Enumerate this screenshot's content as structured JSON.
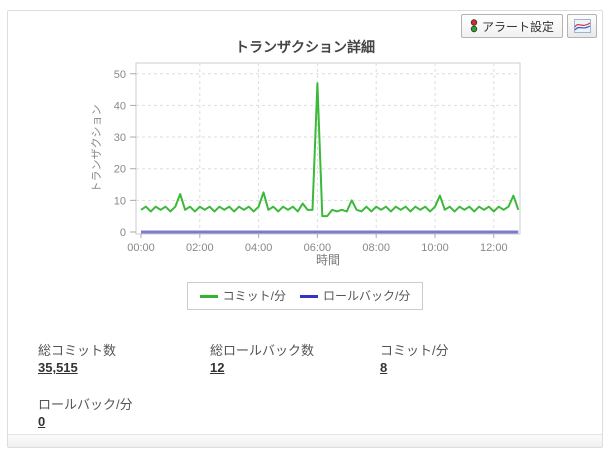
{
  "header": {
    "alert_button_label": "アラート設定"
  },
  "chart_data": {
    "type": "line",
    "title": "トランザクション詳細",
    "xlabel": "時間",
    "ylabel": "トランザクション",
    "ylim": [
      0,
      53.4
    ],
    "y_ticks": [
      0,
      10,
      20,
      30,
      40,
      50
    ],
    "x_ticks": [
      {
        "minute": 0,
        "label": "00:00"
      },
      {
        "minute": 120,
        "label": "02:00"
      },
      {
        "minute": 240,
        "label": "04:00"
      },
      {
        "minute": 360,
        "label": "06:00"
      },
      {
        "minute": 480,
        "label": "08:00"
      },
      {
        "minute": 600,
        "label": "10:00"
      },
      {
        "minute": 720,
        "label": "12:00"
      }
    ],
    "x_step_min": 10,
    "grid": "dashed",
    "legend_position": "bottom",
    "series": [
      {
        "name": "コミット/分",
        "color": "#33b333",
        "line_color": "#3ab93a",
        "stroke_width": 2,
        "values": [
          7,
          8,
          6.5,
          8,
          7,
          8,
          6.5,
          8,
          12,
          7,
          8,
          6.5,
          8,
          7,
          8,
          6.5,
          8,
          7,
          8,
          6.5,
          8,
          7,
          8,
          6.5,
          8,
          12.5,
          7,
          8,
          6.5,
          8,
          7,
          8,
          6.5,
          9,
          7,
          7,
          47,
          5,
          5,
          7,
          6.5,
          7,
          6.5,
          10,
          7,
          6.5,
          8,
          6.5,
          8,
          7,
          8,
          6.5,
          8,
          7,
          8,
          6.5,
          8,
          7,
          8,
          6.5,
          8,
          11.5,
          7,
          8,
          6.5,
          8,
          7,
          8,
          6.5,
          8,
          7,
          8,
          6.5,
          8,
          7,
          8,
          11.5,
          7
        ]
      },
      {
        "name": "ロールバック/分",
        "color": "#3333cc",
        "line_color": "#7b7bd0",
        "stroke_width": 3,
        "values": [
          0,
          0,
          0,
          0,
          0,
          0,
          0,
          0,
          0,
          0,
          0,
          0,
          0,
          0,
          0,
          0,
          0,
          0,
          0,
          0,
          0,
          0,
          0,
          0,
          0,
          0,
          0,
          0,
          0,
          0,
          0,
          0,
          0,
          0,
          0,
          0,
          0,
          0,
          0,
          0,
          0,
          0,
          0,
          0,
          0,
          0,
          0,
          0,
          0,
          0,
          0,
          0,
          0,
          0,
          0,
          0,
          0,
          0,
          0,
          0,
          0,
          0,
          0,
          0,
          0,
          0,
          0,
          0,
          0,
          0,
          0,
          0,
          0,
          0,
          0,
          0,
          0,
          0
        ]
      }
    ]
  },
  "stats": [
    {
      "label": "総コミット数",
      "value": "35,515"
    },
    {
      "label": "総ロールバック数",
      "value": "12"
    },
    {
      "label": "コミット/分",
      "value": "8"
    },
    {
      "label": "ロールバック/分",
      "value": "0"
    }
  ]
}
